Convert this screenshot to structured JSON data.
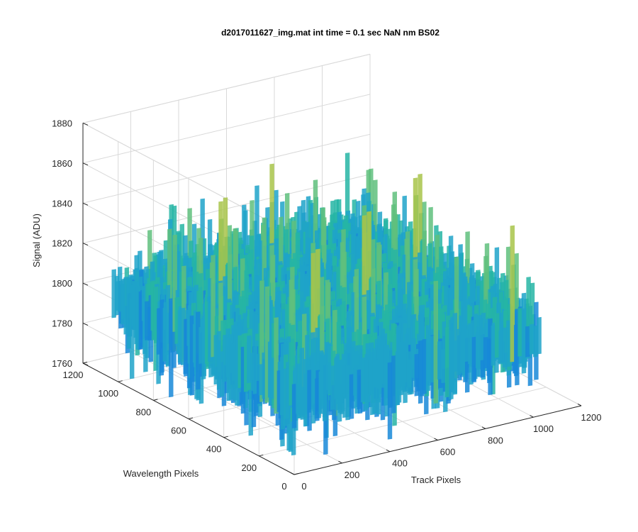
{
  "chart_data": {
    "type": "surface",
    "title": "d2017011627_img.mat int time = 0.1 sec  NaN nm BS02",
    "xlabel": "Track Pixels",
    "ylabel": "Wavelength Pixels",
    "zlabel": "Signal (ADU)",
    "xlim": [
      0,
      1200
    ],
    "ylim": [
      0,
      1200
    ],
    "zlim": [
      1760,
      1880
    ],
    "x_ticks": [
      "0",
      "200",
      "400",
      "600",
      "800",
      "1000",
      "1200"
    ],
    "y_ticks": [
      "0",
      "200",
      "400",
      "600",
      "800",
      "1000",
      "1200"
    ],
    "z_ticks": [
      "1760",
      "1780",
      "1800",
      "1820",
      "1840",
      "1860",
      "1880"
    ],
    "data_extent": {
      "x": [
        0,
        1024
      ],
      "y": [
        0,
        1024
      ]
    },
    "signal_mean": 1800,
    "signal_range": [
      1765,
      1865
    ],
    "colormap": [
      "#0b53e0",
      "#1888d8",
      "#1fa3c9",
      "#26b5a4",
      "#5fbf7c",
      "#a8c44a"
    ],
    "grid": true
  }
}
